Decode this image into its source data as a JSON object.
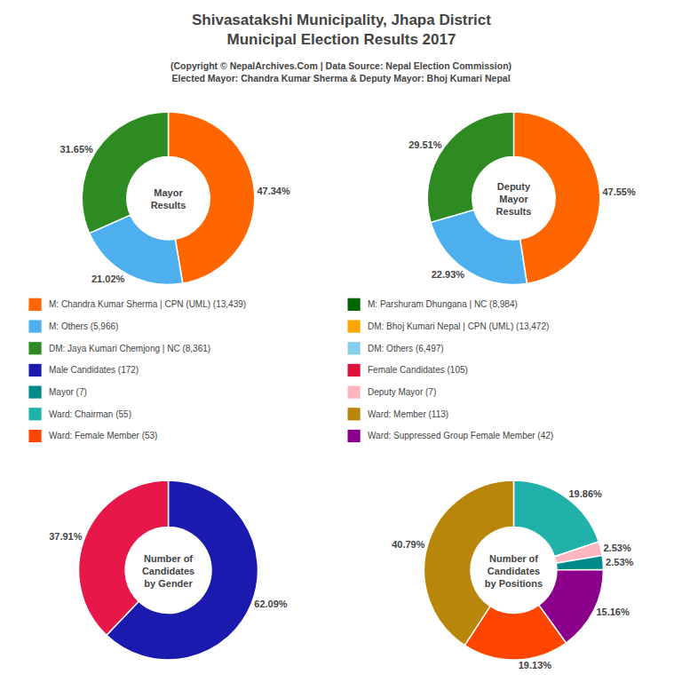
{
  "title": "Shivasatakshi Municipality, Jhapa District\nMunicipal Election Results 2017",
  "subtitle": "(Copyright © NepalArchives.Com | Data Source: Nepal Election Commission)\nElected Mayor: Chandra Kumar Sherma & Deputy Mayor: Bhoj Kumari Nepal",
  "chart_data": [
    {
      "type": "pie",
      "title": "Mayor\nResults",
      "values": [
        47.34,
        21.02,
        31.65
      ],
      "value_labels": [
        "47.34%",
        "21.02%",
        "31.65%"
      ],
      "colors": [
        "#FF6600",
        "#4DAFEE",
        "#2E8B22"
      ],
      "data_labels": true
    },
    {
      "type": "pie",
      "title": "Deputy\nMayor\nResults",
      "values": [
        47.55,
        22.93,
        29.51
      ],
      "value_labels": [
        "47.55%",
        "22.93%",
        "29.51%"
      ],
      "colors": [
        "#FF6600",
        "#4DAFEE",
        "#2E8B22"
      ],
      "data_labels": true
    },
    {
      "type": "pie",
      "title": "Number of\nCandidates\nby Gender",
      "values": [
        62.09,
        37.91
      ],
      "value_labels": [
        "62.09%",
        "37.91%"
      ],
      "colors": [
        "#1A1AAF",
        "#E8174A"
      ],
      "data_labels": true
    },
    {
      "type": "pie",
      "title": "Number of\nCandidates\nby Positions",
      "values": [
        19.86,
        2.53,
        2.53,
        15.16,
        19.13,
        40.79
      ],
      "value_labels": [
        "19.86%",
        "2.53%",
        "2.53%",
        "15.16%",
        "19.13%",
        "40.79%"
      ],
      "colors": [
        "#20B2AA",
        "#FFB6C1",
        "#008B8B",
        "#8B008B",
        "#FF4500",
        "#B8860B"
      ],
      "data_labels": true
    }
  ],
  "annotations": [
    {
      "text": "M: Chandra Kumar Sherma | CPN (UML) (13,439)",
      "color": "#FF6600"
    },
    {
      "text": "M: Others (5,966)",
      "color": "#4DAFEE"
    },
    {
      "text": "DM: Jaya Kumari Chemjong | NC (8,361)",
      "color": "#2E8B22"
    },
    {
      "text": "Male Candidates (172)",
      "color": "#1A1AAF"
    },
    {
      "text": "Mayor (7)",
      "color": "#008B8B"
    },
    {
      "text": "Ward: Chairman (55)",
      "color": "#20B2AA"
    },
    {
      "text": "Ward: Female Member (53)",
      "color": "#FF4500"
    },
    {
      "text": "M: Parshuram Dhungana | NC (8,984)",
      "color": "#006400"
    },
    {
      "text": "DM: Bhoj Kumari Nepal | CPN (UML) (13,472)",
      "color": "#FFA500"
    },
    {
      "text": "DM: Others (6,497)",
      "color": "#87CEEB"
    },
    {
      "text": "Female Candidates (105)",
      "color": "#DC143C"
    },
    {
      "text": "Deputy Mayor (7)",
      "color": "#FFB6C1"
    },
    {
      "text": "Ward: Member (113)",
      "color": "#B8860B"
    },
    {
      "text": "Ward: Suppressed Group Female Member (42)",
      "color": "#8B008B"
    }
  ]
}
